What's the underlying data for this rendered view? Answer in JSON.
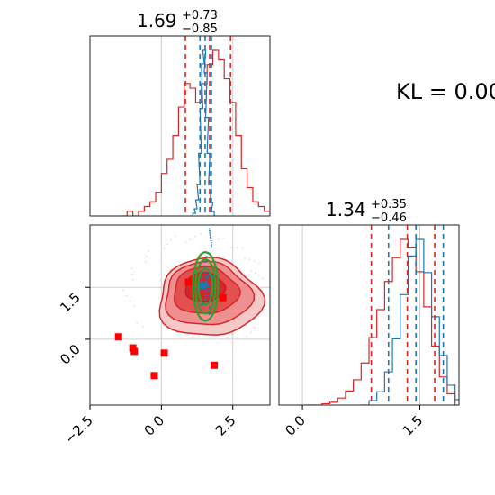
{
  "annotation": "KL = 0.00",
  "chart_data": [
    {
      "type": "histogram",
      "panel": "top-left",
      "title_value": "1.69",
      "title_plus": "+0.73",
      "title_minus": "−0.85",
      "xlim": [
        -2.5,
        3.8
      ],
      "grid": true,
      "series": [
        {
          "color": "#d62728",
          "bin_centers": [
            -1.3,
            -1.1,
            -0.9,
            -0.7,
            -0.5,
            -0.3,
            -0.1,
            0.1,
            0.3,
            0.5,
            0.7,
            0.9,
            1.1,
            1.3,
            1.5,
            1.7,
            1.9,
            2.1,
            2.3,
            2.5,
            2.7,
            2.9,
            3.1,
            3.3,
            3.5,
            3.7
          ],
          "heights": [
            0,
            1,
            0,
            1,
            2,
            3,
            5,
            9,
            12,
            17,
            23,
            28,
            27,
            24,
            28,
            32,
            35,
            33,
            29,
            24,
            17,
            10,
            6,
            3,
            2,
            1
          ],
          "quantiles": [
            0.84,
            1.69,
            2.42
          ]
        },
        {
          "color": "#1f77b4",
          "bin_centers": [
            1.05,
            1.15,
            1.2,
            1.25,
            1.3,
            1.35,
            1.4,
            1.45,
            1.5,
            1.55,
            1.6,
            1.65,
            1.7,
            1.75,
            1.8,
            1.9
          ],
          "heights": [
            0,
            3,
            8,
            18,
            35,
            70,
            120,
            170,
            185,
            160,
            110,
            70,
            35,
            15,
            5,
            0
          ],
          "quantiles": [
            1.35,
            1.53,
            1.75
          ]
        }
      ]
    },
    {
      "type": "scatter-contour",
      "panel": "bottom-left",
      "xlim": [
        -2.5,
        3.8
      ],
      "ylim": [
        -1.9,
        3.3
      ],
      "xticks": [
        "−2.5",
        "0.0",
        "2.5"
      ],
      "yticks": [
        "1.5",
        "0.0"
      ],
      "grid": true,
      "contour_center": [
        1.7,
        1.5
      ],
      "markers": [
        {
          "x": -1.5,
          "y": 0.07,
          "color": "#ff0000"
        },
        {
          "x": -1.0,
          "y": -0.25,
          "color": "#ff0000"
        },
        {
          "x": -0.95,
          "y": -0.35,
          "color": "#ff0000"
        },
        {
          "x": -0.25,
          "y": -1.05,
          "color": "#ff0000"
        },
        {
          "x": 0.1,
          "y": -0.4,
          "color": "#ff0000"
        },
        {
          "x": 1.85,
          "y": -0.75,
          "color": "#ff0000"
        },
        {
          "x": 2.15,
          "y": 1.2,
          "color": "#ff0000"
        },
        {
          "x": 0.95,
          "y": 1.65,
          "color": "#ff0000"
        },
        {
          "x": 1.45,
          "y": 1.55,
          "color": "#1f77b4"
        }
      ]
    },
    {
      "type": "histogram",
      "panel": "bottom-right",
      "title_value": "1.34",
      "title_plus": "+0.35",
      "title_minus": "−0.46",
      "xlim": [
        -0.3,
        2.0
      ],
      "xticks": [
        "0.0",
        "1.5"
      ],
      "grid": true,
      "series": [
        {
          "color": "#d62728",
          "bin_centers": [
            0.1,
            0.2,
            0.3,
            0.4,
            0.5,
            0.6,
            0.7,
            0.8,
            0.9,
            1.0,
            1.1,
            1.2,
            1.3,
            1.4,
            1.5,
            1.6,
            1.7,
            1.8,
            1.9
          ],
          "heights": [
            0,
            0,
            1,
            2,
            5,
            10,
            18,
            30,
            48,
            68,
            88,
            105,
            118,
            112,
            95,
            70,
            42,
            20,
            8
          ],
          "quantiles": [
            0.88,
            1.34,
            1.69
          ]
        },
        {
          "color": "#1f77b4",
          "bin_centers": [
            0.8,
            0.9,
            1.0,
            1.1,
            1.2,
            1.3,
            1.4,
            1.5,
            1.6,
            1.7,
            1.8,
            1.9,
            2.0
          ],
          "heights": [
            0,
            4,
            12,
            30,
            60,
            100,
            135,
            150,
            120,
            80,
            45,
            18,
            5
          ],
          "quantiles": [
            1.1,
            1.45,
            1.8
          ]
        }
      ]
    }
  ]
}
